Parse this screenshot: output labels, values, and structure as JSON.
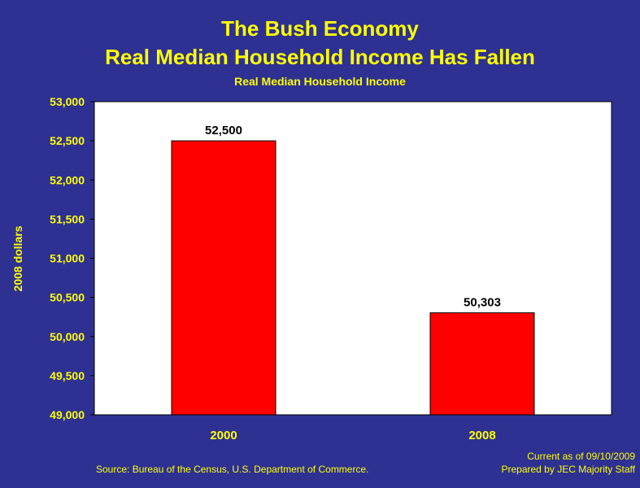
{
  "title_line1": "The Bush Economy",
  "title_line2": "Real Median Household Income Has Fallen",
  "footer": {
    "source": "Source: Bureau of the Census, U.S. Department of Commerce.",
    "current_as_of": "Current as of 09/10/2009",
    "prepared_by": "Prepared by JEC Majority Staff"
  },
  "colors": {
    "background": "#2E3192",
    "plot_area": "#FFFFFF",
    "bar": "#FF0000",
    "text_accent": "#FFFF00"
  },
  "chart_data": {
    "type": "bar",
    "title": "Real Median Household Income",
    "xlabel": "",
    "ylabel": "2008 dollars",
    "categories": [
      "2000",
      "2008"
    ],
    "values": [
      52500,
      50303
    ],
    "data_labels": [
      "52,500",
      "50,303"
    ],
    "ylim": [
      49000,
      53000
    ],
    "yticks": [
      49000,
      49500,
      50000,
      50500,
      51000,
      51500,
      52000,
      52500,
      53000
    ],
    "ytick_labels": [
      "49,000",
      "49,500",
      "50,000",
      "50,500",
      "51,000",
      "51,500",
      "52,000",
      "52,500",
      "53,000"
    ],
    "grid": false,
    "legend": "none"
  }
}
